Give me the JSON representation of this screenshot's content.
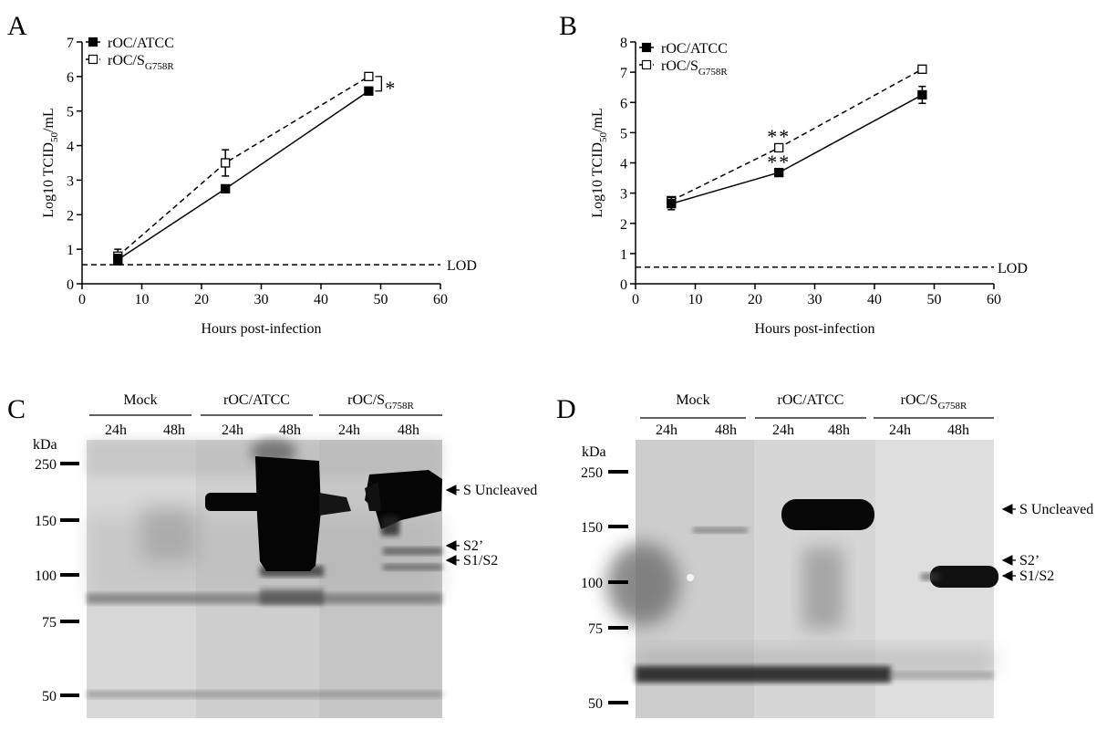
{
  "chart_data": [
    {
      "panel": "A",
      "type": "line",
      "xlabel": "Hours post-infection",
      "ylabel": {
        "main": "Log10 TCID",
        "sub": "50",
        "tail": "/mL"
      },
      "xlim": [
        0,
        60
      ],
      "ylim": [
        0,
        7
      ],
      "xticks": [
        0,
        10,
        20,
        30,
        40,
        50,
        60
      ],
      "yticks": [
        0,
        1,
        2,
        3,
        4,
        5,
        6,
        7
      ],
      "x": [
        6,
        24,
        48
      ],
      "series": [
        {
          "name": {
            "main": "rOC/ATCC",
            "sub": ""
          },
          "marker": "filled-square",
          "dash": "solid",
          "values": [
            0.7,
            2.75,
            5.58
          ],
          "errors": [
            0.15,
            0.05,
            0.05
          ]
        },
        {
          "name": {
            "main": "rOC/S",
            "sub": "G758R"
          },
          "marker": "open-square",
          "dash": "dashed",
          "values": [
            0.8,
            3.5,
            6.0
          ],
          "errors": [
            0.2,
            0.38,
            0.05
          ]
        }
      ],
      "lod": {
        "label": "LOD",
        "value": 0.55
      },
      "annotations": [
        {
          "text": "*",
          "x": 48,
          "type": "bracket"
        }
      ],
      "legend": "top-left"
    },
    {
      "panel": "B",
      "type": "line",
      "xlabel": "Hours post-infection",
      "ylabel": {
        "main": "Log10 TCID",
        "sub": "50",
        "tail": "/mL"
      },
      "xlim": [
        0,
        60
      ],
      "ylim": [
        0,
        8
      ],
      "xticks": [
        0,
        10,
        20,
        30,
        40,
        50,
        60
      ],
      "yticks": [
        0,
        1,
        2,
        3,
        4,
        5,
        6,
        7,
        8
      ],
      "x": [
        6,
        24,
        48
      ],
      "series": [
        {
          "name": {
            "main": "rOC/ATCC",
            "sub": ""
          },
          "marker": "filled-square",
          "dash": "solid",
          "values": [
            2.65,
            3.68,
            6.25
          ],
          "errors": [
            0.2,
            0.05,
            0.28
          ]
        },
        {
          "name": {
            "main": "rOC/S",
            "sub": "G758R"
          },
          "marker": "open-square",
          "dash": "dashed",
          "values": [
            2.75,
            4.5,
            7.1
          ],
          "errors": [
            0.1,
            0.05,
            0.05
          ]
        }
      ],
      "lod": {
        "label": "LOD",
        "value": 0.55
      },
      "annotations": [
        {
          "text": "**",
          "x": 24,
          "y": 4.95
        },
        {
          "text": "**",
          "x": 24,
          "y": 4.1
        }
      ],
      "legend": "top-left"
    }
  ],
  "blots": [
    {
      "panel": "C",
      "unit": "kDa",
      "groups": [
        {
          "label": {
            "main": "Mock",
            "sub": ""
          }
        },
        {
          "label": {
            "main": "rOC/ATCC",
            "sub": ""
          }
        },
        {
          "label": {
            "main": "rOC/S",
            "sub": "G758R"
          }
        }
      ],
      "lanes": [
        "24h",
        "48h",
        "24h",
        "48h",
        "24h",
        "48h"
      ],
      "markers": [
        "250",
        "150",
        "100",
        "75",
        "50"
      ],
      "bands": [
        "S Uncleaved",
        "S2’",
        "S1/S2"
      ]
    },
    {
      "panel": "D",
      "unit": "kDa",
      "groups": [
        {
          "label": {
            "main": "Mock",
            "sub": ""
          }
        },
        {
          "label": {
            "main": "rOC/ATCC",
            "sub": ""
          }
        },
        {
          "label": {
            "main": "rOC/S",
            "sub": "G758R"
          }
        }
      ],
      "lanes": [
        "24h",
        "48h",
        "24h",
        "48h",
        "24h",
        "48h"
      ],
      "markers": [
        "250",
        "150",
        "100",
        "75",
        "50"
      ],
      "bands": [
        "S Uncleaved",
        "S2’",
        "S1/S2"
      ]
    }
  ]
}
